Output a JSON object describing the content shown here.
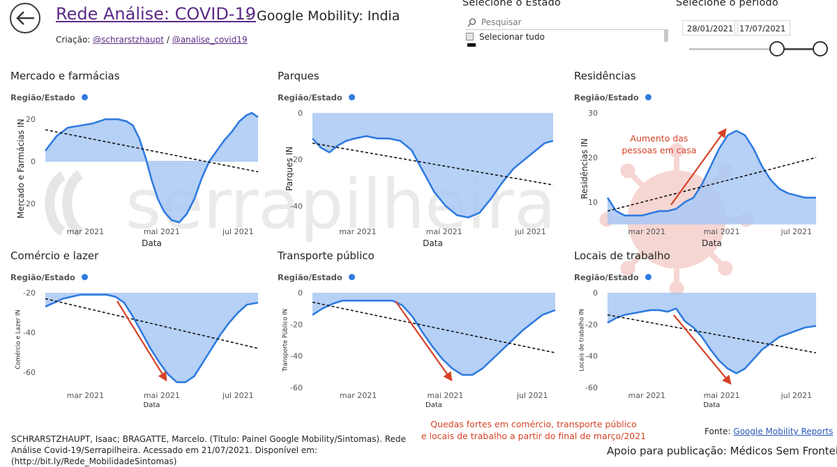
{
  "header": {
    "title": "Rede Análise: COVID-19",
    "separator": "-",
    "subtitle": "Google Mobility: India",
    "credits_prefix": "Criação:",
    "credit_1": "@schrarstzhaupt",
    "credit_sep": "/",
    "credit_2": "@analise_covid19"
  },
  "state_slicer": {
    "title": "Selecione o Estado",
    "search_placeholder": "Pesquisar",
    "select_all_label": "Selecionar tudo"
  },
  "period_slicer": {
    "title": "Selecione o período",
    "start_date": "28/01/2021",
    "end_date": "17/07/2021"
  },
  "watermark_text": "serrapilheira",
  "annotations": {
    "residences": [
      "Aumento das",
      "pessoas em casa"
    ],
    "drops": [
      "Quedas fortes em comércio, transporte público",
      "e locais de trabalho a partir do final de março/2021"
    ]
  },
  "footer": {
    "citation": "SCHRARSTZHAUPT, Isaac; BRAGATTE, Marcelo. (Título: Painel Google Mobility/Sintomas). Rede Análise Covid-19/Serrapilheira. Acessado em 21/07/2021. Disponível em: (http://bit.ly/Rede_MobilidadeSintomas)",
    "source_prefix": "Fonte:",
    "source_link": "Google Mobility Reports",
    "support": "Apoio para publicação: Médicos Sem Fronteiras"
  },
  "colors": {
    "line": "#2f7be0",
    "area": "#a9c8f5",
    "trend": "#111111",
    "annotation": "#d64226",
    "title_link": "#5b2a86"
  },
  "chart_data": [
    {
      "id": "mercado",
      "type": "area",
      "title": "Mercado e farmácias",
      "legend_label": "Região/Estado",
      "xlabel": "Data",
      "ylabel": "Mercado e Farmácias IN",
      "x_range": [
        "2021-01-28",
        "2021-07-17"
      ],
      "ylim": [
        -30,
        23
      ],
      "yticks": [
        20,
        0,
        -20
      ],
      "xticks": [
        "mar 2021",
        "mai 2021",
        "jul 2021"
      ],
      "x": [
        "2021-01-28",
        "2021-02-06",
        "2021-02-15",
        "2021-02-25",
        "2021-03-07",
        "2021-03-17",
        "2021-03-27",
        "2021-04-03",
        "2021-04-08",
        "2021-04-13",
        "2021-04-18",
        "2021-04-23",
        "2021-04-28",
        "2021-05-03",
        "2021-05-09",
        "2021-05-15",
        "2021-05-21",
        "2021-05-27",
        "2021-06-02",
        "2021-06-08",
        "2021-06-14",
        "2021-06-20",
        "2021-06-26",
        "2021-07-02",
        "2021-07-08",
        "2021-07-12",
        "2021-07-17"
      ],
      "values": [
        5,
        12,
        16,
        17,
        18,
        20,
        20,
        19,
        17,
        11,
        2,
        -9,
        -18,
        -24,
        -28,
        -29,
        -25,
        -18,
        -8,
        0,
        5,
        10,
        14,
        19,
        22,
        23,
        21
      ],
      "trend": [
        15,
        -5
      ]
    },
    {
      "id": "parques",
      "type": "area",
      "title": "Parques",
      "legend_label": "Região/Estado",
      "xlabel": "Data",
      "ylabel": "Parques IN",
      "x_range": [
        "2021-01-28",
        "2021-07-17"
      ],
      "ylim": [
        -48,
        0
      ],
      "yticks": [
        0,
        -20,
        -40
      ],
      "xticks": [
        "mar 2021",
        "mai 2021",
        "jul 2021"
      ],
      "x": [
        "2021-01-28",
        "2021-02-03",
        "2021-02-09",
        "2021-02-15",
        "2021-02-21",
        "2021-02-27",
        "2021-03-07",
        "2021-03-15",
        "2021-03-23",
        "2021-03-31",
        "2021-04-08",
        "2021-04-16",
        "2021-04-24",
        "2021-05-02",
        "2021-05-10",
        "2021-05-18",
        "2021-05-26",
        "2021-06-03",
        "2021-06-11",
        "2021-06-19",
        "2021-06-27",
        "2021-07-05",
        "2021-07-11",
        "2021-07-17"
      ],
      "values": [
        -11,
        -15,
        -17,
        -14,
        -12,
        -11,
        -10,
        -11,
        -11,
        -12,
        -16,
        -25,
        -34,
        -40,
        -44,
        -45,
        -43,
        -37,
        -30,
        -24,
        -20,
        -16,
        -13,
        -12
      ],
      "trend": [
        -13,
        -31
      ]
    },
    {
      "id": "residencias",
      "type": "area",
      "title": "Residências",
      "legend_label": "Região/Estado",
      "xlabel": "Data",
      "ylabel": "Residências IN",
      "x_range": [
        "2021-01-28",
        "2021-07-17"
      ],
      "ylim": [
        5,
        30
      ],
      "yticks": [
        30,
        20,
        10
      ],
      "xticks": [
        "mar 2021",
        "mai 2021",
        "jul 2021"
      ],
      "x": [
        "2021-01-28",
        "2021-02-04",
        "2021-02-11",
        "2021-02-18",
        "2021-02-25",
        "2021-03-04",
        "2021-03-11",
        "2021-03-18",
        "2021-03-25",
        "2021-04-01",
        "2021-04-08",
        "2021-04-15",
        "2021-04-22",
        "2021-04-29",
        "2021-05-06",
        "2021-05-13",
        "2021-05-20",
        "2021-05-27",
        "2021-06-03",
        "2021-06-10",
        "2021-06-17",
        "2021-06-24",
        "2021-07-01",
        "2021-07-08",
        "2021-07-17"
      ],
      "values": [
        11,
        8,
        7,
        7,
        7,
        7.5,
        8,
        8,
        8.5,
        10,
        11,
        14,
        18,
        22,
        25,
        26,
        25,
        22,
        18,
        15,
        13,
        12,
        11.5,
        11,
        11
      ],
      "trend": [
        8,
        20
      ]
    },
    {
      "id": "comercio",
      "type": "area",
      "title": "Comércio e lazer",
      "legend_label": "Região/Estado",
      "xlabel": "Data",
      "ylabel": "Comércio e Lazer IN",
      "x_range": [
        "2021-01-28",
        "2021-07-17"
      ],
      "ylim": [
        -67,
        -20
      ],
      "yticks": [
        -20,
        -40,
        -60
      ],
      "xticks": [
        "mar 2021",
        "mai 2021",
        "jul 2021"
      ],
      "x": [
        "2021-01-28",
        "2021-02-04",
        "2021-02-11",
        "2021-02-18",
        "2021-02-25",
        "2021-03-04",
        "2021-03-11",
        "2021-03-18",
        "2021-03-25",
        "2021-04-01",
        "2021-04-08",
        "2021-04-15",
        "2021-04-22",
        "2021-04-29",
        "2021-05-06",
        "2021-05-13",
        "2021-05-20",
        "2021-05-27",
        "2021-06-03",
        "2021-06-10",
        "2021-06-17",
        "2021-06-24",
        "2021-07-01",
        "2021-07-08",
        "2021-07-17"
      ],
      "values": [
        -27,
        -25,
        -23,
        -22,
        -21,
        -21,
        -21,
        -21,
        -22,
        -25,
        -32,
        -40,
        -48,
        -55,
        -61,
        -65,
        -65,
        -62,
        -55,
        -48,
        -41,
        -35,
        -30,
        -26,
        -25
      ],
      "trend": [
        -23,
        -48
      ]
    },
    {
      "id": "transporte",
      "type": "area",
      "title": "Transporte público",
      "legend_label": "Região/Estado",
      "xlabel": "Data",
      "ylabel": "Transporte Público IN",
      "x_range": [
        "2021-01-28",
        "2021-07-17"
      ],
      "ylim": [
        -60,
        0
      ],
      "yticks": [
        0,
        -20,
        -40,
        -60
      ],
      "xticks": [
        "mar 2021",
        "mai 2021",
        "jul 2021"
      ],
      "x": [
        "2021-01-28",
        "2021-02-04",
        "2021-02-11",
        "2021-02-18",
        "2021-02-25",
        "2021-03-04",
        "2021-03-11",
        "2021-03-18",
        "2021-03-25",
        "2021-04-01",
        "2021-04-08",
        "2021-04-15",
        "2021-04-22",
        "2021-04-29",
        "2021-05-06",
        "2021-05-13",
        "2021-05-20",
        "2021-05-27",
        "2021-06-03",
        "2021-06-10",
        "2021-06-17",
        "2021-06-24",
        "2021-07-01",
        "2021-07-08",
        "2021-07-17"
      ],
      "values": [
        -14,
        -10,
        -7,
        -5,
        -5,
        -5,
        -5,
        -5,
        -5,
        -8,
        -15,
        -25,
        -34,
        -42,
        -48,
        -52,
        -52,
        -48,
        -42,
        -36,
        -30,
        -24,
        -19,
        -14,
        -11
      ],
      "trend": [
        -6,
        -38
      ]
    },
    {
      "id": "trabalho",
      "type": "area",
      "title": "Locais de trabalho",
      "legend_label": "Região/Estado",
      "xlabel": "Data",
      "ylabel": "Locais de trabalho IN",
      "x_range": [
        "2021-01-28",
        "2021-07-17"
      ],
      "ylim": [
        -60,
        0
      ],
      "yticks": [
        0,
        -20,
        -40,
        -60
      ],
      "xticks": [
        "mar 2021",
        "mai 2021",
        "jul 2021"
      ],
      "x": [
        "2021-01-28",
        "2021-02-04",
        "2021-02-11",
        "2021-02-18",
        "2021-02-25",
        "2021-03-04",
        "2021-03-11",
        "2021-03-18",
        "2021-03-25",
        "2021-04-01",
        "2021-04-08",
        "2021-04-15",
        "2021-04-22",
        "2021-04-29",
        "2021-05-06",
        "2021-05-13",
        "2021-05-20",
        "2021-05-27",
        "2021-06-03",
        "2021-06-10",
        "2021-06-17",
        "2021-06-24",
        "2021-07-01",
        "2021-07-08",
        "2021-07-17"
      ],
      "values": [
        -19,
        -16,
        -14,
        -13,
        -12,
        -11,
        -11,
        -12,
        -10,
        -18,
        -22,
        -28,
        -36,
        -43,
        -48,
        -51,
        -48,
        -42,
        -36,
        -32,
        -28,
        -26,
        -24,
        -22,
        -21
      ],
      "trend": [
        -14,
        -38
      ]
    }
  ]
}
